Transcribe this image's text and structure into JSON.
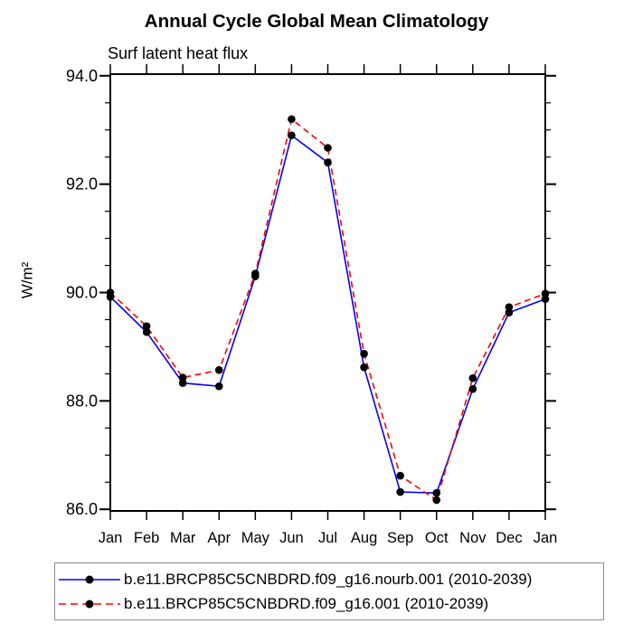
{
  "chart": {
    "title": "Annual Cycle Global Mean Climatology",
    "subtitle": "Surf latent heat flux",
    "ylabel": "W/m²"
  },
  "chart_data": {
    "type": "line",
    "title": "Annual Cycle Global Mean Climatology",
    "subtitle": "Surf latent heat flux",
    "ylabel": "W/m²",
    "x": [
      "Jan",
      "Feb",
      "Mar",
      "Apr",
      "May",
      "Jun",
      "Jul",
      "Aug",
      "Sep",
      "Oct",
      "Nov",
      "Dec",
      "Jan"
    ],
    "series": [
      {
        "name": "b.e11.BRCP85C5CNBDRD.f09_g16.nourb.001 (2010-2039)",
        "color": "#0000ff",
        "line_style": "solid",
        "marker": "filled-circle",
        "marker_color": "#000000",
        "values": [
          89.92,
          89.27,
          88.33,
          88.27,
          90.3,
          92.9,
          92.4,
          88.62,
          86.32,
          86.3,
          88.22,
          89.63,
          89.88
        ]
      },
      {
        "name": "b.e11.BRCP85C5CNBDRD.f09_g16.001 (2010-2039)",
        "color": "#ff0000",
        "line_style": "dashed",
        "marker": "filled-circle",
        "marker_color": "#000000",
        "values": [
          90.0,
          89.38,
          88.43,
          88.57,
          90.35,
          93.2,
          92.67,
          88.87,
          86.62,
          86.17,
          88.42,
          89.73,
          89.98
        ]
      }
    ],
    "ylim": [
      85.97,
      94.03
    ],
    "yticks_major": [
      86.0,
      88.0,
      90.0,
      92.0,
      94.0
    ],
    "ytick_labels": [
      "86.0",
      "88.0",
      "90.0",
      "92.0",
      "94.0"
    ],
    "ytick_minor_step": 0.5,
    "grid": false,
    "legend_position": "bottom",
    "frame_color": "#000000",
    "background_color": "#ffffff"
  }
}
